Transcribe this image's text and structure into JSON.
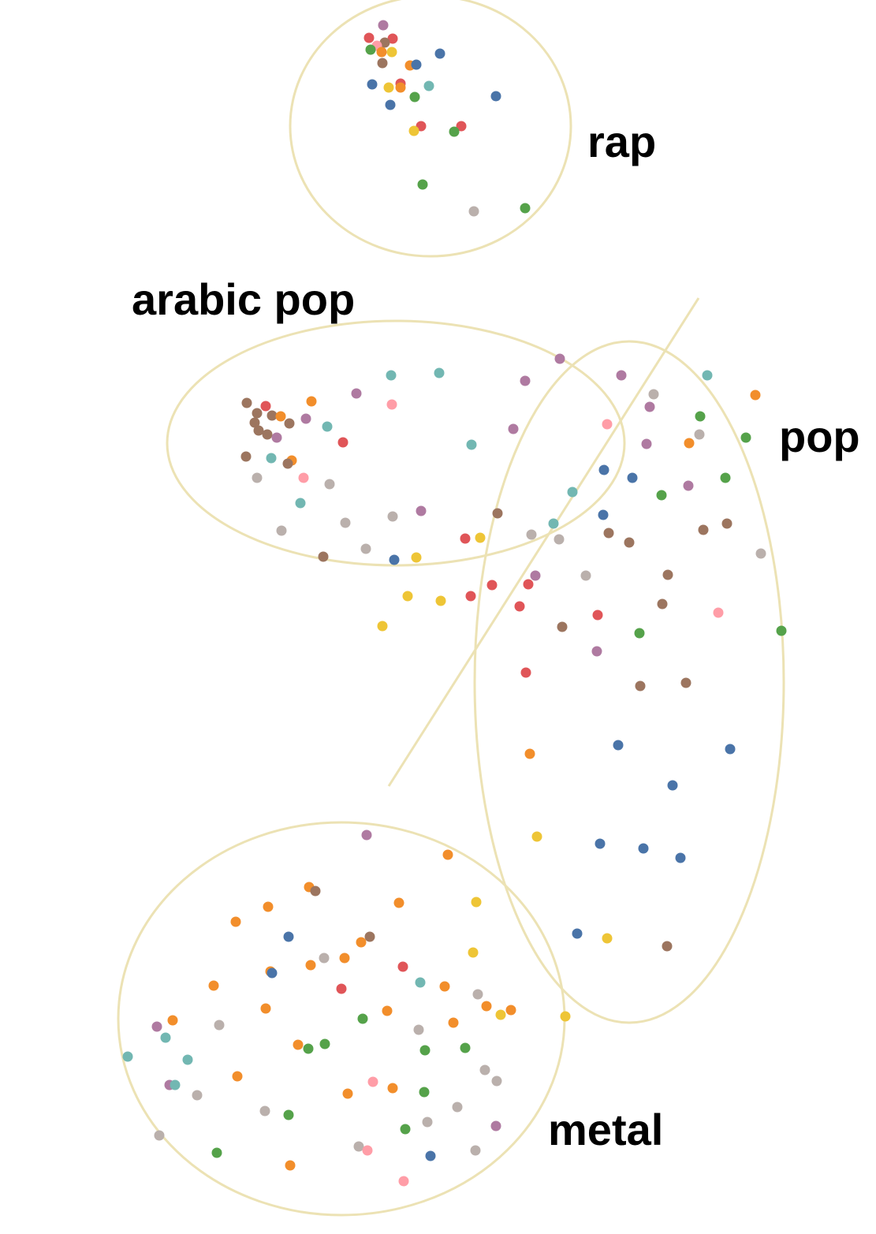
{
  "chart_data": {
    "type": "scatter",
    "title": "",
    "xlabel": "",
    "ylabel": "",
    "grid": false,
    "legend": "none",
    "palette": {
      "blue": "#4a74a8",
      "orange": "#f28e2b",
      "red": "#e05558",
      "teal": "#72b7b2",
      "green": "#55a24a",
      "yellow": "#eec536",
      "purple": "#af7aa1",
      "pink": "#ff9da7",
      "brown": "#9c755f",
      "gray": "#bab0ac"
    },
    "annotation_color": "#ece2b4",
    "clusters": [
      {
        "label": "rap"
      },
      {
        "label": "arabic pop"
      },
      {
        "label": "pop"
      },
      {
        "label": "metal"
      }
    ],
    "points": [
      [
        486,
        32,
        "purple"
      ],
      [
        468,
        48,
        "red"
      ],
      [
        498,
        49,
        "red"
      ],
      [
        488,
        54,
        "brown"
      ],
      [
        478,
        58,
        "pink"
      ],
      [
        470,
        63,
        "green"
      ],
      [
        484,
        66,
        "orange"
      ],
      [
        497,
        66,
        "yellow"
      ],
      [
        558,
        68,
        "blue"
      ],
      [
        485,
        80,
        "brown"
      ],
      [
        520,
        83,
        "orange"
      ],
      [
        528,
        82,
        "blue"
      ],
      [
        472,
        107,
        "blue"
      ],
      [
        493,
        111,
        "yellow"
      ],
      [
        508,
        106,
        "red"
      ],
      [
        508,
        111,
        "orange"
      ],
      [
        544,
        109,
        "teal"
      ],
      [
        526,
        123,
        "green"
      ],
      [
        495,
        133,
        "blue"
      ],
      [
        629,
        122,
        "blue"
      ],
      [
        534,
        160,
        "red"
      ],
      [
        525,
        166,
        "yellow"
      ],
      [
        585,
        160,
        "red"
      ],
      [
        576,
        167,
        "green"
      ],
      [
        536,
        234,
        "green"
      ],
      [
        601,
        268,
        "gray"
      ],
      [
        666,
        264,
        "green"
      ],
      [
        710,
        455,
        "purple"
      ],
      [
        496,
        476,
        "teal"
      ],
      [
        557,
        473,
        "teal"
      ],
      [
        666,
        483,
        "purple"
      ],
      [
        788,
        476,
        "purple"
      ],
      [
        897,
        476,
        "teal"
      ],
      [
        958,
        501,
        "orange"
      ],
      [
        452,
        499,
        "purple"
      ],
      [
        829,
        500,
        "gray"
      ],
      [
        395,
        509,
        "orange"
      ],
      [
        497,
        513,
        "pink"
      ],
      [
        313,
        511,
        "brown"
      ],
      [
        337,
        515,
        "red"
      ],
      [
        824,
        516,
        "purple"
      ],
      [
        326,
        524,
        "brown"
      ],
      [
        345,
        527,
        "brown"
      ],
      [
        356,
        528,
        "orange"
      ],
      [
        388,
        531,
        "purple"
      ],
      [
        888,
        528,
        "green"
      ],
      [
        323,
        536,
        "brown"
      ],
      [
        367,
        537,
        "brown"
      ],
      [
        415,
        541,
        "teal"
      ],
      [
        770,
        538,
        "pink"
      ],
      [
        651,
        544,
        "purple"
      ],
      [
        328,
        546,
        "brown"
      ],
      [
        339,
        551,
        "brown"
      ],
      [
        351,
        555,
        "purple"
      ],
      [
        887,
        551,
        "gray"
      ],
      [
        946,
        555,
        "green"
      ],
      [
        435,
        561,
        "red"
      ],
      [
        598,
        564,
        "teal"
      ],
      [
        820,
        563,
        "purple"
      ],
      [
        874,
        562,
        "orange"
      ],
      [
        312,
        579,
        "brown"
      ],
      [
        344,
        581,
        "teal"
      ],
      [
        370,
        584,
        "orange"
      ],
      [
        365,
        588,
        "brown"
      ],
      [
        766,
        596,
        "blue"
      ],
      [
        326,
        606,
        "gray"
      ],
      [
        385,
        606,
        "pink"
      ],
      [
        802,
        606,
        "blue"
      ],
      [
        920,
        606,
        "green"
      ],
      [
        418,
        614,
        "gray"
      ],
      [
        873,
        616,
        "purple"
      ],
      [
        726,
        624,
        "teal"
      ],
      [
        839,
        628,
        "green"
      ],
      [
        381,
        638,
        "teal"
      ],
      [
        534,
        648,
        "purple"
      ],
      [
        498,
        655,
        "gray"
      ],
      [
        631,
        651,
        "brown"
      ],
      [
        765,
        653,
        "blue"
      ],
      [
        438,
        663,
        "gray"
      ],
      [
        702,
        664,
        "teal"
      ],
      [
        922,
        664,
        "brown"
      ],
      [
        357,
        673,
        "gray"
      ],
      [
        892,
        672,
        "brown"
      ],
      [
        772,
        676,
        "brown"
      ],
      [
        674,
        678,
        "gray"
      ],
      [
        590,
        683,
        "red"
      ],
      [
        609,
        682,
        "yellow"
      ],
      [
        709,
        684,
        "gray"
      ],
      [
        798,
        688,
        "brown"
      ],
      [
        464,
        696,
        "gray"
      ],
      [
        965,
        702,
        "gray"
      ],
      [
        410,
        706,
        "brown"
      ],
      [
        500,
        710,
        "blue"
      ],
      [
        528,
        707,
        "yellow"
      ],
      [
        679,
        730,
        "purple"
      ],
      [
        743,
        730,
        "gray"
      ],
      [
        847,
        729,
        "brown"
      ],
      [
        670,
        741,
        "red"
      ],
      [
        624,
        742,
        "red"
      ],
      [
        517,
        756,
        "yellow"
      ],
      [
        597,
        756,
        "red"
      ],
      [
        559,
        762,
        "yellow"
      ],
      [
        840,
        766,
        "brown"
      ],
      [
        659,
        769,
        "red"
      ],
      [
        758,
        780,
        "red"
      ],
      [
        911,
        777,
        "pink"
      ],
      [
        485,
        794,
        "yellow"
      ],
      [
        713,
        795,
        "brown"
      ],
      [
        811,
        803,
        "green"
      ],
      [
        991,
        800,
        "green"
      ],
      [
        757,
        826,
        "purple"
      ],
      [
        667,
        853,
        "red"
      ],
      [
        812,
        870,
        "brown"
      ],
      [
        870,
        866,
        "brown"
      ],
      [
        784,
        945,
        "blue"
      ],
      [
        926,
        950,
        "blue"
      ],
      [
        672,
        956,
        "orange"
      ],
      [
        853,
        996,
        "blue"
      ],
      [
        681,
        1061,
        "yellow"
      ],
      [
        761,
        1070,
        "blue"
      ],
      [
        816,
        1076,
        "blue"
      ],
      [
        863,
        1088,
        "blue"
      ],
      [
        732,
        1184,
        "blue"
      ],
      [
        770,
        1190,
        "yellow"
      ],
      [
        846,
        1200,
        "brown"
      ],
      [
        465,
        1059,
        "purple"
      ],
      [
        568,
        1084,
        "orange"
      ],
      [
        392,
        1125,
        "orange"
      ],
      [
        400,
        1130,
        "brown"
      ],
      [
        340,
        1150,
        "orange"
      ],
      [
        506,
        1145,
        "orange"
      ],
      [
        604,
        1144,
        "yellow"
      ],
      [
        299,
        1169,
        "orange"
      ],
      [
        366,
        1188,
        "blue"
      ],
      [
        469,
        1188,
        "brown"
      ],
      [
        458,
        1195,
        "orange"
      ],
      [
        600,
        1208,
        "yellow"
      ],
      [
        411,
        1215,
        "gray"
      ],
      [
        437,
        1215,
        "orange"
      ],
      [
        394,
        1224,
        "orange"
      ],
      [
        511,
        1226,
        "red"
      ],
      [
        343,
        1232,
        "orange"
      ],
      [
        345,
        1234,
        "blue"
      ],
      [
        533,
        1246,
        "teal"
      ],
      [
        271,
        1250,
        "orange"
      ],
      [
        564,
        1251,
        "orange"
      ],
      [
        433,
        1254,
        "red"
      ],
      [
        606,
        1261,
        "gray"
      ],
      [
        617,
        1276,
        "orange"
      ],
      [
        337,
        1279,
        "orange"
      ],
      [
        491,
        1282,
        "orange"
      ],
      [
        648,
        1281,
        "orange"
      ],
      [
        635,
        1287,
        "yellow"
      ],
      [
        717,
        1289,
        "yellow"
      ],
      [
        219,
        1294,
        "orange"
      ],
      [
        460,
        1292,
        "green"
      ],
      [
        575,
        1297,
        "orange"
      ],
      [
        278,
        1300,
        "gray"
      ],
      [
        199,
        1302,
        "purple"
      ],
      [
        531,
        1306,
        "gray"
      ],
      [
        210,
        1316,
        "teal"
      ],
      [
        378,
        1325,
        "orange"
      ],
      [
        412,
        1324,
        "green"
      ],
      [
        391,
        1330,
        "green"
      ],
      [
        590,
        1329,
        "green"
      ],
      [
        539,
        1332,
        "green"
      ],
      [
        162,
        1340,
        "teal"
      ],
      [
        238,
        1344,
        "teal"
      ],
      [
        615,
        1357,
        "gray"
      ],
      [
        301,
        1365,
        "orange"
      ],
      [
        630,
        1371,
        "gray"
      ],
      [
        473,
        1372,
        "pink"
      ],
      [
        215,
        1376,
        "purple"
      ],
      [
        222,
        1376,
        "teal"
      ],
      [
        498,
        1380,
        "orange"
      ],
      [
        538,
        1385,
        "green"
      ],
      [
        441,
        1387,
        "orange"
      ],
      [
        250,
        1389,
        "gray"
      ],
      [
        580,
        1404,
        "gray"
      ],
      [
        336,
        1409,
        "gray"
      ],
      [
        366,
        1414,
        "green"
      ],
      [
        542,
        1423,
        "gray"
      ],
      [
        629,
        1428,
        "purple"
      ],
      [
        514,
        1432,
        "green"
      ],
      [
        202,
        1440,
        "gray"
      ],
      [
        455,
        1454,
        "gray"
      ],
      [
        466,
        1459,
        "pink"
      ],
      [
        603,
        1459,
        "gray"
      ],
      [
        275,
        1462,
        "green"
      ],
      [
        546,
        1466,
        "blue"
      ],
      [
        368,
        1478,
        "orange"
      ],
      [
        512,
        1498,
        "pink"
      ]
    ]
  }
}
